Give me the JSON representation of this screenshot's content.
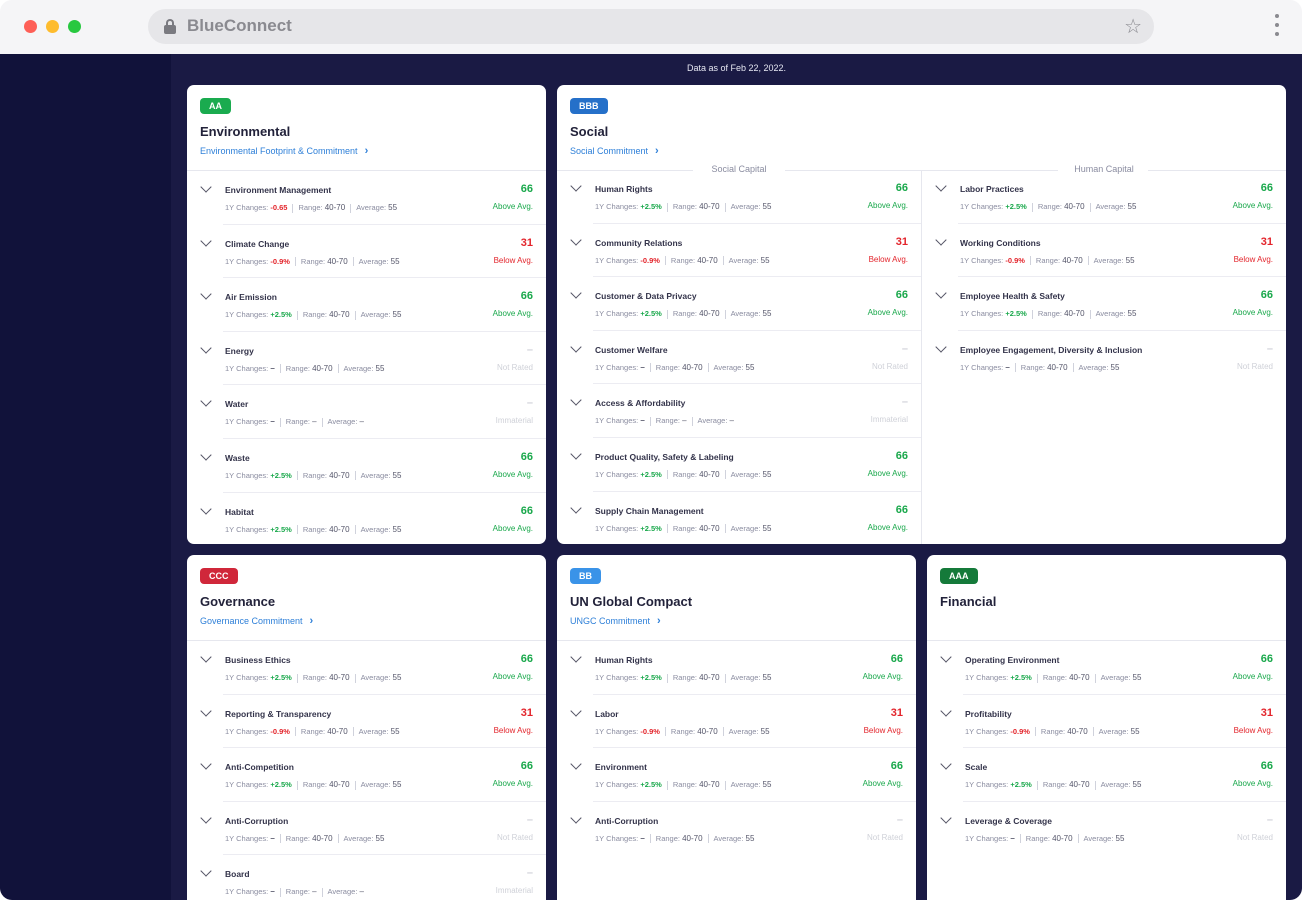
{
  "browser": {
    "url": "BlueConnect"
  },
  "as_of": "Data as of Feb 22, 2022.",
  "labels": {
    "changes": "1Y Changes:",
    "range": "Range:",
    "average": "Average:"
  },
  "colors": {
    "sidebar": "#11123a",
    "main_bg": "#1a1a44",
    "positive": "#19a84b",
    "negative": "#e3242b",
    "link": "#2d7fd8"
  },
  "cards": {
    "environmental": {
      "badge": "AA",
      "badge_color": "#1aab4f",
      "title": "Environmental",
      "link": "Environmental Footprint & Commitment",
      "items": [
        {
          "name": "Environment Management",
          "change": "-0.65",
          "range": "40-70",
          "average": "55",
          "score": "66",
          "rating": "Above Avg."
        },
        {
          "name": "Climate Change",
          "change": "-0.9%",
          "range": "40-70",
          "average": "55",
          "score": "31",
          "rating": "Below Avg."
        },
        {
          "name": "Air Emission",
          "change": "+2.5%",
          "range": "40-70",
          "average": "55",
          "score": "66",
          "rating": "Above Avg."
        },
        {
          "name": "Energy",
          "change": "–",
          "range": "40-70",
          "average": "55",
          "score": "–",
          "rating": "Not Rated"
        },
        {
          "name": "Water",
          "change": "–",
          "range": "–",
          "average": "–",
          "score": "–",
          "rating": "Immaterial"
        },
        {
          "name": "Waste",
          "change": "+2.5%",
          "range": "40-70",
          "average": "55",
          "score": "66",
          "rating": "Above Avg."
        },
        {
          "name": "Habitat",
          "change": "+2.5%",
          "range": "40-70",
          "average": "55",
          "score": "66",
          "rating": "Above Avg."
        }
      ]
    },
    "social": {
      "badge": "BBB",
      "badge_color": "#2570c9",
      "title": "Social",
      "link": "Social Commitment",
      "col_left": "Social Capital",
      "col_right": "Human Capital",
      "left_items": [
        {
          "name": "Human Rights",
          "change": "+2.5%",
          "range": "40-70",
          "average": "55",
          "score": "66",
          "rating": "Above Avg."
        },
        {
          "name": "Community Relations",
          "change": "-0.9%",
          "range": "40-70",
          "average": "55",
          "score": "31",
          "rating": "Below Avg."
        },
        {
          "name": "Customer & Data Privacy",
          "change": "+2.5%",
          "range": "40-70",
          "average": "55",
          "score": "66",
          "rating": "Above Avg."
        },
        {
          "name": "Customer Welfare",
          "change": "–",
          "range": "40-70",
          "average": "55",
          "score": "–",
          "rating": "Not Rated"
        },
        {
          "name": "Access & Affordability",
          "change": "–",
          "range": "–",
          "average": "–",
          "score": "–",
          "rating": "Immaterial"
        },
        {
          "name": "Product Quality, Safety & Labeling",
          "change": "+2.5%",
          "range": "40-70",
          "average": "55",
          "score": "66",
          "rating": "Above Avg."
        },
        {
          "name": "Supply Chain Management",
          "change": "+2.5%",
          "range": "40-70",
          "average": "55",
          "score": "66",
          "rating": "Above Avg."
        }
      ],
      "right_items": [
        {
          "name": "Labor Practices",
          "change": "+2.5%",
          "range": "40-70",
          "average": "55",
          "score": "66",
          "rating": "Above Avg."
        },
        {
          "name": "Working Conditions",
          "change": "-0.9%",
          "range": "40-70",
          "average": "55",
          "score": "31",
          "rating": "Below Avg."
        },
        {
          "name": "Employee Health & Safety",
          "change": "+2.5%",
          "range": "40-70",
          "average": "55",
          "score": "66",
          "rating": "Above Avg."
        },
        {
          "name": "Employee Engagement, Diversity & Inclusion",
          "change": "–",
          "range": "40-70",
          "average": "55",
          "score": "–",
          "rating": "Not Rated"
        }
      ]
    },
    "governance": {
      "badge": "CCC",
      "badge_color": "#d0273a",
      "title": "Governance",
      "link": "Governance Commitment",
      "items": [
        {
          "name": "Business Ethics",
          "change": "+2.5%",
          "range": "40-70",
          "average": "55",
          "score": "66",
          "rating": "Above Avg."
        },
        {
          "name": "Reporting & Transparency",
          "change": "-0.9%",
          "range": "40-70",
          "average": "55",
          "score": "31",
          "rating": "Below Avg."
        },
        {
          "name": "Anti-Competition",
          "change": "+2.5%",
          "range": "40-70",
          "average": "55",
          "score": "66",
          "rating": "Above Avg."
        },
        {
          "name": "Anti-Corruption",
          "change": "–",
          "range": "40-70",
          "average": "55",
          "score": "–",
          "rating": "Not Rated"
        },
        {
          "name": "Board",
          "change": "–",
          "range": "–",
          "average": "–",
          "score": "–",
          "rating": "Immaterial"
        }
      ]
    },
    "ungc": {
      "badge": "BB",
      "badge_color": "#3a93e8",
      "title": "UN Global Compact",
      "link": "UNGC Commitment",
      "items": [
        {
          "name": "Human Rights",
          "change": "+2.5%",
          "range": "40-70",
          "average": "55",
          "score": "66",
          "rating": "Above Avg."
        },
        {
          "name": "Labor",
          "change": "-0.9%",
          "range": "40-70",
          "average": "55",
          "score": "31",
          "rating": "Below Avg."
        },
        {
          "name": "Environment",
          "change": "+2.5%",
          "range": "40-70",
          "average": "55",
          "score": "66",
          "rating": "Above Avg."
        },
        {
          "name": "Anti-Corruption",
          "change": "–",
          "range": "40-70",
          "average": "55",
          "score": "–",
          "rating": "Not Rated"
        }
      ]
    },
    "financial": {
      "badge": "AAA",
      "badge_color": "#157a3a",
      "title": "Financial",
      "link": "",
      "items": [
        {
          "name": "Operating Environment",
          "change": "+2.5%",
          "range": "40-70",
          "average": "55",
          "score": "66",
          "rating": "Above Avg."
        },
        {
          "name": "Profitability",
          "change": "-0.9%",
          "range": "40-70",
          "average": "55",
          "score": "31",
          "rating": "Below Avg."
        },
        {
          "name": "Scale",
          "change": "+2.5%",
          "range": "40-70",
          "average": "55",
          "score": "66",
          "rating": "Above Avg."
        },
        {
          "name": "Leverage & Coverage",
          "change": "–",
          "range": "40-70",
          "average": "55",
          "score": "–",
          "rating": "Not Rated"
        }
      ]
    }
  }
}
